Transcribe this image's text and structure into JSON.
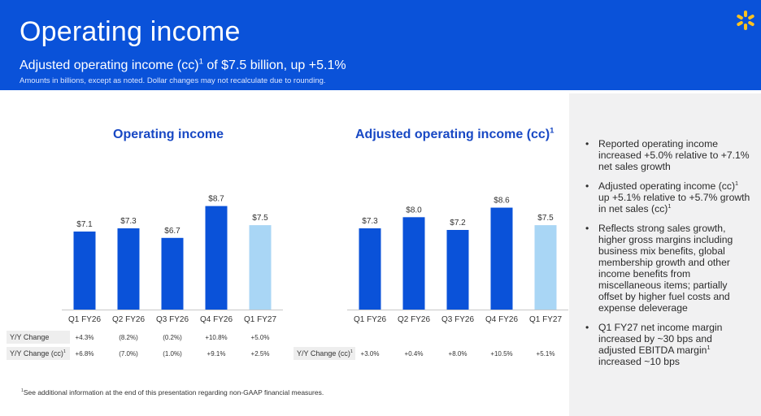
{
  "slide": {
    "title": "Operating income",
    "subtitle_pre": "Adjusted operating income (cc)",
    "subtitle_sup": "1",
    "subtitle_post": " of $7.5 billion, up +5.1%",
    "amounts_note": "Amounts in billions, except as noted.  Dollar changes may not recalculate due to rounding.",
    "footnote_sup": "1",
    "footnote": "See additional information at the end of this presentation regarding non-GAAP financial measures."
  },
  "colors": {
    "header": "#0a52d9",
    "bar": "#0a52d9",
    "bar_highlight": "#a9d6f5",
    "spark": "#ffc220"
  },
  "icons": {
    "logo": "spark-icon"
  },
  "left_chart": {
    "title": "Operating income",
    "row1_label": "Y/Y Change",
    "row2_label": "Y/Y Change (cc)",
    "row2_sup": "1",
    "row1": [
      "+4.3%",
      "(8.2%)",
      "(0.2%)",
      "+10.8%",
      "+5.0%"
    ],
    "row2": [
      "+6.8%",
      "(7.0%)",
      "(1.0%)",
      "+9.1%",
      "+2.5%"
    ]
  },
  "right_chart": {
    "title": "Adjusted operating income (cc)",
    "title_sup": "1",
    "row_label": "Y/Y Change (cc)",
    "row_sup": "1",
    "row": [
      "+3.0%",
      "+0.4%",
      "+8.0%",
      "+10.5%",
      "+5.1%"
    ]
  },
  "chart_data": [
    {
      "type": "bar",
      "title": "Operating income",
      "categories": [
        "Q1 FY26",
        "Q2 FY26",
        "Q3 FY26",
        "Q4 FY26",
        "Q1 FY27"
      ],
      "values": [
        7.1,
        7.3,
        6.7,
        8.7,
        7.5
      ],
      "labels": [
        "$7.1",
        "$7.3",
        "$6.7",
        "$8.7",
        "$7.5"
      ],
      "highlight_index": 4
    },
    {
      "type": "bar",
      "title": "Adjusted operating income (cc)",
      "categories": [
        "Q1 FY26",
        "Q2 FY26",
        "Q3 FY26",
        "Q4 FY26",
        "Q1 FY27"
      ],
      "values": [
        7.3,
        8.0,
        7.2,
        8.6,
        7.5
      ],
      "labels": [
        "$7.3",
        "$8.0",
        "$7.2",
        "$8.6",
        "$7.5"
      ],
      "highlight_index": 4
    }
  ],
  "bullets": [
    {
      "text": "Reported operating income increased +5.0% relative to +7.1% net sales growth"
    },
    {
      "pre": "Adjusted operating income (cc)",
      "sup": "1",
      "post": " up +5.1% relative to +5.7% growth in net sales (cc)",
      "sup2": "1"
    },
    {
      "text": "Reflects strong sales growth, higher gross margins including business mix benefits, global membership growth and other income benefits from miscellaneous items; partially offset by higher fuel costs and expense deleverage"
    },
    {
      "pre": "Q1 FY27 net income margin increased by ~30 bps and adjusted EBITDA margin",
      "sup": "1",
      "post": " increased ~10 bps"
    }
  ]
}
